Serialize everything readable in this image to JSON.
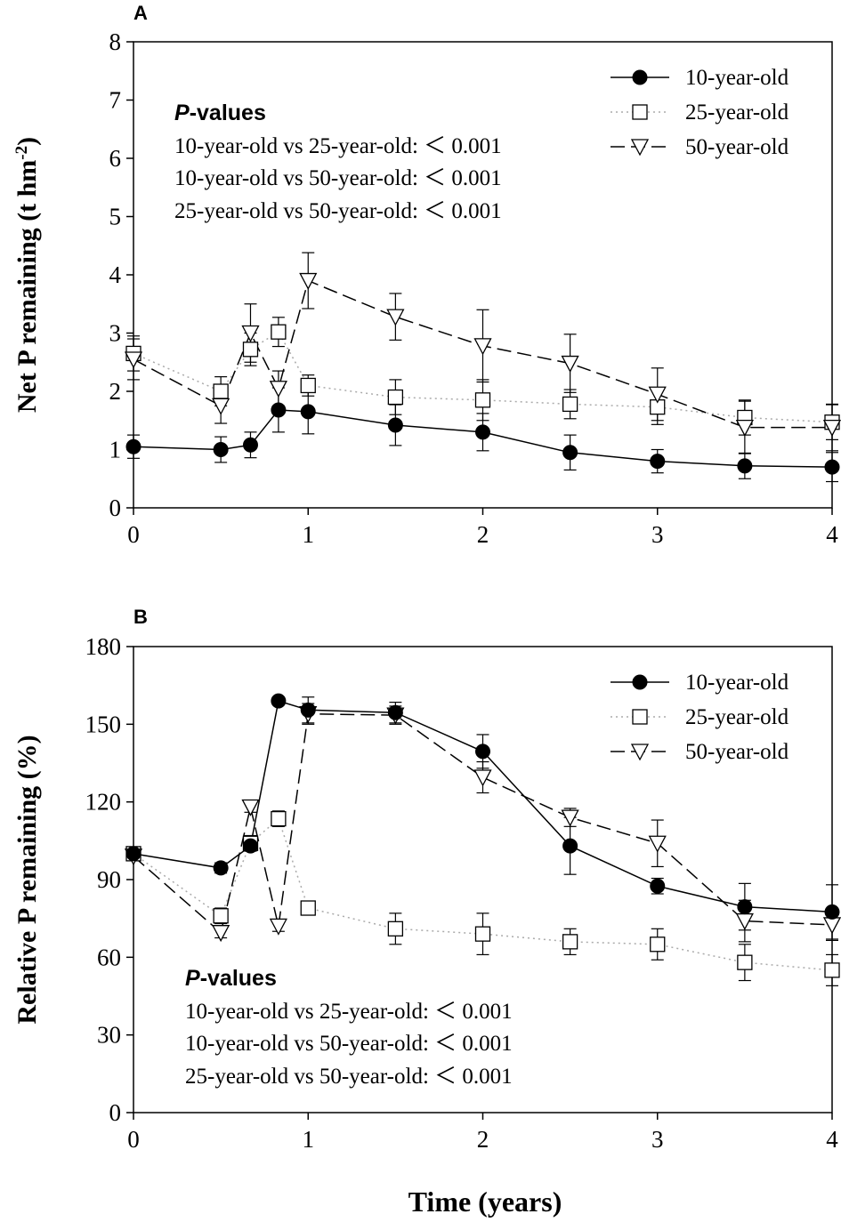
{
  "chart_data": [
    {
      "panel": "A",
      "type": "line",
      "xlabel": "",
      "ylabel": "Net P remaining (t hm",
      "ylabel_sup": "-2",
      "ylabel_close": ")",
      "xlim": [
        0,
        4
      ],
      "ylim": [
        0,
        8
      ],
      "xticks": [
        0,
        1,
        2,
        3,
        4
      ],
      "yticks": [
        0,
        1,
        2,
        3,
        4,
        5,
        6,
        7,
        8
      ],
      "xtick_labels": [
        "0",
        "1",
        "2",
        "3",
        "4"
      ],
      "ytick_labels": [
        "0",
        "1",
        "2",
        "3",
        "4",
        "5",
        "6",
        "7",
        "8"
      ],
      "legend_position": "top-right",
      "series": [
        {
          "name": "10-year-old",
          "marker": "circle-filled",
          "line": "solid",
          "x": [
            0,
            0.5,
            0.67,
            0.83,
            1,
            1.5,
            2,
            2.5,
            3,
            3.5,
            4
          ],
          "y": [
            1.05,
            1.0,
            1.08,
            1.68,
            1.65,
            1.42,
            1.3,
            0.95,
            0.8,
            0.72,
            0.7
          ],
          "err": [
            0.2,
            0.22,
            0.22,
            0.38,
            0.38,
            0.35,
            0.32,
            0.3,
            0.2,
            0.22,
            0.25
          ]
        },
        {
          "name": "25-year-old",
          "marker": "square-open",
          "line": "dotted",
          "x": [
            0,
            0.5,
            0.67,
            0.83,
            1,
            1.5,
            2,
            2.5,
            3,
            3.5,
            4
          ],
          "y": [
            2.65,
            2.0,
            2.72,
            3.02,
            2.1,
            1.9,
            1.85,
            1.78,
            1.73,
            1.55,
            1.47
          ],
          "err": [
            0.3,
            0.25,
            0.28,
            0.25,
            0.18,
            0.3,
            0.35,
            0.25,
            0.3,
            0.3,
            0.3
          ]
        },
        {
          "name": "50-year-old",
          "marker": "triangle-down-open",
          "line": "dashed",
          "x": [
            0,
            0.5,
            0.67,
            0.83,
            1,
            1.5,
            2,
            2.5,
            3,
            3.5,
            4
          ],
          "y": [
            2.55,
            1.75,
            3.0,
            2.05,
            3.9,
            3.28,
            2.78,
            2.48,
            1.95,
            1.38,
            1.38
          ],
          "err": [
            0.35,
            0.3,
            0.5,
            0.3,
            0.48,
            0.4,
            0.62,
            0.5,
            0.45,
            0.45,
            0.4
          ]
        }
      ],
      "annotation": {
        "heading_italic": "P",
        "heading_rest": "-values",
        "lines": [
          "10-year-old vs 25-year-old: ＜ 0.001",
          "10-year-old vs 50-year-old: ＜ 0.001",
          "25-year-old vs 50-year-old: ＜ 0.001"
        ]
      }
    },
    {
      "panel": "B",
      "type": "line",
      "xlabel": "Time (years)",
      "ylabel": "Relative P remaining (%)",
      "xlim": [
        0,
        4
      ],
      "ylim": [
        0,
        180
      ],
      "xticks": [
        0,
        1,
        2,
        3,
        4
      ],
      "yticks": [
        0,
        30,
        60,
        90,
        120,
        150,
        180
      ],
      "xtick_labels": [
        "0",
        "1",
        "2",
        "3",
        "4"
      ],
      "ytick_labels": [
        "0",
        "30",
        "60",
        "90",
        "120",
        "150",
        "180"
      ],
      "legend_position": "top-right",
      "series": [
        {
          "name": "10-year-old",
          "marker": "circle-filled",
          "line": "solid",
          "x": [
            0,
            0.5,
            0.67,
            0.83,
            1,
            1.5,
            2,
            2.5,
            3,
            3.5,
            4
          ],
          "y": [
            100,
            94.5,
            103,
            159,
            155.5,
            154.5,
            139.5,
            103,
            87.5,
            79.5,
            77.5
          ],
          "err": [
            1.5,
            2,
            2,
            1.5,
            5,
            4,
            6.5,
            11,
            3,
            9,
            10.5
          ]
        },
        {
          "name": "25-year-old",
          "marker": "square-open",
          "line": "dotted",
          "x": [
            0,
            0.5,
            0.67,
            0.83,
            1,
            1.5,
            2,
            2.5,
            3,
            3.5,
            4
          ],
          "y": [
            100,
            76,
            104,
            113.5,
            79,
            71,
            69,
            66,
            65,
            58,
            55
          ],
          "err": [
            1,
            3,
            3,
            3,
            2,
            6,
            8,
            5,
            6,
            7,
            6
          ]
        },
        {
          "name": "50-year-old",
          "marker": "triangle-down-open",
          "line": "dashed",
          "x": [
            0,
            0.5,
            0.67,
            0.83,
            1,
            1.5,
            2,
            2.5,
            3,
            3.5,
            4
          ],
          "y": [
            99,
            69.5,
            118,
            72,
            154,
            153.5,
            129.5,
            114,
            104,
            74,
            72.5
          ],
          "err": [
            1.5,
            2,
            2,
            2,
            4,
            3.5,
            6,
            3.5,
            9,
            8,
            6
          ]
        }
      ],
      "annotation": {
        "heading_italic": "P",
        "heading_rest": "-values",
        "lines": [
          "10-year-old vs 25-year-old: ＜ 0.001",
          "10-year-old vs 50-year-old: ＜ 0.001",
          "25-year-old vs 50-year-old: ＜ 0.001"
        ]
      }
    }
  ]
}
